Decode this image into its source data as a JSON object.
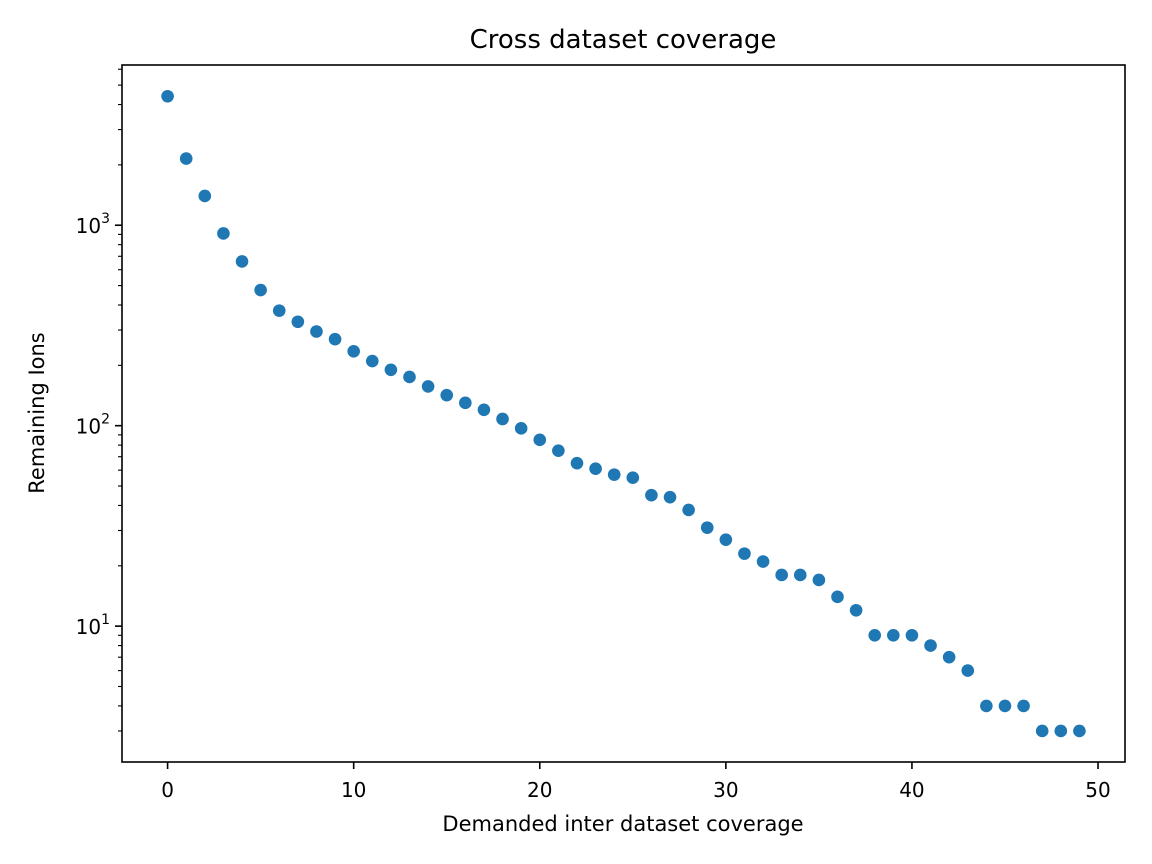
{
  "chart_data": {
    "type": "scatter",
    "title": "Cross dataset coverage",
    "xlabel": "Demanded inter dataset coverage",
    "ylabel": "Remaining Ions",
    "yscale": "log",
    "xlim": [
      -2.45,
      51.45
    ],
    "ylim": [
      2.1,
      6300
    ],
    "xticks": [
      0,
      10,
      20,
      30,
      40,
      50
    ],
    "yticks": [
      {
        "value": 10,
        "base": "10",
        "exp": "1"
      },
      {
        "value": 100,
        "base": "10",
        "exp": "2"
      },
      {
        "value": 1000,
        "base": "10",
        "exp": "3"
      }
    ],
    "grid": false,
    "marker_color": "#1f77b4",
    "x": [
      0,
      1,
      2,
      3,
      4,
      5,
      6,
      7,
      8,
      9,
      10,
      11,
      12,
      13,
      14,
      15,
      16,
      17,
      18,
      19,
      20,
      21,
      22,
      23,
      24,
      25,
      26,
      27,
      28,
      29,
      30,
      31,
      32,
      33,
      34,
      35,
      36,
      37,
      38,
      39,
      40,
      41,
      42,
      43,
      44,
      45,
      46,
      47,
      48,
      49
    ],
    "y": [
      4400,
      2150,
      1400,
      910,
      660,
      475,
      375,
      330,
      295,
      270,
      235,
      210,
      190,
      175,
      157,
      142,
      130,
      120,
      108,
      97,
      85,
      75,
      65,
      61,
      57,
      55,
      45,
      44,
      38,
      31,
      27,
      23,
      21,
      18,
      18,
      17,
      14,
      12,
      9,
      9,
      9,
      8,
      7,
      6,
      4,
      4,
      4,
      3,
      3,
      3
    ]
  }
}
